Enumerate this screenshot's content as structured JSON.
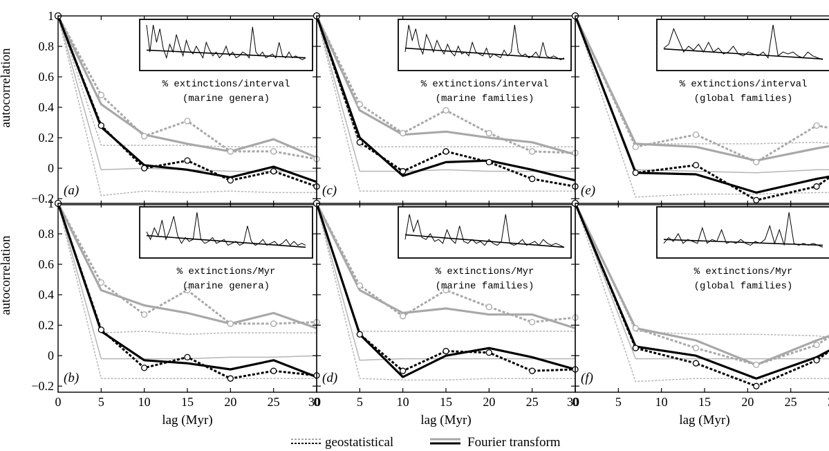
{
  "chart_data": [
    {
      "type": "line",
      "id": "a",
      "panel_label": "(a)",
      "x": [
        0,
        5,
        10,
        15,
        20,
        25,
        30
      ],
      "series": [
        {
          "name": "geostatistical",
          "style": "gray-dashed-circles",
          "values": [
            1,
            0.48,
            0.21,
            0.31,
            0.11,
            0.11,
            0.06
          ]
        },
        {
          "name": "geostatistical",
          "style": "black-dashed-circles",
          "values": [
            1,
            0.28,
            0.0,
            0.05,
            -0.08,
            -0.02,
            -0.12
          ]
        },
        {
          "name": "Fourier transform",
          "style": "gray-solid",
          "values": [
            1,
            0.42,
            0.22,
            0.16,
            0.11,
            0.19,
            0.07
          ]
        },
        {
          "name": "Fourier transform",
          "style": "black-solid",
          "values": [
            1,
            0.27,
            0.02,
            -0.01,
            -0.06,
            0.01,
            -0.09
          ]
        },
        {
          "style": "thin-gray-solid",
          "values": [
            1,
            -0.01,
            0.0,
            -0.01,
            -0.02,
            -0.02,
            -0.02
          ]
        },
        {
          "style": "thin-gray-dashed",
          "values": [
            1,
            0.15,
            0.15,
            0.15,
            0.14,
            0.14,
            0.14
          ]
        },
        {
          "style": "thin-gray-dashed",
          "values": [
            1,
            -0.18,
            -0.15,
            -0.16,
            -0.15,
            -0.16,
            -0.16
          ]
        }
      ],
      "inset": {
        "caption1": "% extinctions/interval",
        "caption2": "(marine genera)",
        "spikes": [
          2,
          0.3,
          5,
          0.55,
          0.9,
          0.4,
          0.15,
          0.5,
          0.3,
          0.75,
          0.45,
          0.2,
          0.6,
          0.35,
          0.25,
          0.45,
          0.3,
          0.15,
          0.55,
          0.35,
          0.2,
          0.3,
          0.15,
          0.25,
          0.45,
          0.2,
          0.3,
          0.15,
          0.2,
          0.3,
          0.25,
          0.15,
          0.95,
          0.3,
          0.2,
          0.3,
          0.15,
          0.2,
          0.25,
          0.15,
          0.55,
          0.2,
          0.15,
          0.3,
          0.15,
          0.2,
          0.15,
          0.1,
          0.15
        ],
        "trend": [
          0.35,
          0.15
        ]
      },
      "xlim": [
        0,
        30
      ],
      "ylim": [
        -0.24,
        1.0
      ],
      "xlabel": "",
      "ylabel": "autocorrelation"
    },
    {
      "type": "line",
      "id": "c",
      "panel_label": "(c)",
      "x": [
        0,
        5,
        10,
        15,
        20,
        25,
        30
      ],
      "series": [
        {
          "name": "geostatistical",
          "style": "gray-dashed-circles",
          "values": [
            1,
            0.42,
            0.23,
            0.38,
            0.23,
            0.11,
            0.1
          ]
        },
        {
          "name": "geostatistical",
          "style": "black-dashed-circles",
          "values": [
            1,
            0.17,
            -0.02,
            0.11,
            0.04,
            -0.07,
            -0.12
          ]
        },
        {
          "name": "Fourier transform",
          "style": "gray-solid",
          "values": [
            1,
            0.38,
            0.22,
            0.24,
            0.2,
            0.17,
            0.09
          ]
        },
        {
          "name": "Fourier transform",
          "style": "black-solid",
          "values": [
            1,
            0.2,
            -0.05,
            0.04,
            0.05,
            -0.01,
            -0.08
          ]
        },
        {
          "style": "thin-gray-solid",
          "values": [
            1,
            -0.02,
            -0.02,
            -0.01,
            -0.02,
            -0.02,
            -0.02
          ]
        },
        {
          "style": "thin-gray-dashed",
          "values": [
            1,
            0.14,
            0.14,
            0.14,
            0.14,
            0.14,
            0.14
          ]
        },
        {
          "style": "thin-gray-dashed",
          "values": [
            1,
            -0.15,
            -0.15,
            -0.15,
            -0.15,
            -0.15,
            -0.15
          ]
        }
      ],
      "inset": {
        "caption1": "% extinctions/interval",
        "caption2": "(marine families)",
        "spikes": [
          0.3,
          4,
          0.6,
          0.9,
          0.45,
          0.25,
          0.75,
          0.55,
          0.3,
          0.6,
          0.4,
          0.25,
          0.5,
          0.3,
          0.2,
          0.45,
          0.25,
          0.3,
          0.2,
          0.55,
          0.3,
          0.25,
          0.2,
          0.4,
          0.15,
          0.25,
          0.2,
          0.15,
          0.35,
          0.2,
          0.3,
          1.0,
          0.3,
          0.2,
          0.25,
          0.15,
          0.2,
          0.3,
          0.15,
          0.55,
          0.2,
          0.15,
          0.2,
          0.15,
          0.1,
          0.15
        ],
        "trend": [
          0.4,
          0.12
        ]
      },
      "xlim": [
        0,
        30
      ],
      "ylim": [
        -0.24,
        1.0
      ],
      "xlabel": "",
      "ylabel": ""
    },
    {
      "type": "line",
      "id": "e",
      "panel_label": "(e)",
      "x": [
        0,
        7,
        14,
        21,
        28,
        30
      ],
      "series": [
        {
          "name": "geostatistical",
          "style": "gray-dashed-circles",
          "values": [
            1,
            0.14,
            0.22,
            0.04,
            0.28,
            0.26
          ]
        },
        {
          "name": "geostatistical",
          "style": "black-dashed-circles",
          "values": [
            1,
            -0.03,
            0.02,
            -0.21,
            -0.12,
            -0.04
          ]
        },
        {
          "name": "Fourier transform",
          "style": "gray-solid",
          "values": [
            1,
            0.16,
            0.14,
            0.05,
            0.13,
            0.15
          ]
        },
        {
          "name": "Fourier transform",
          "style": "black-solid",
          "values": [
            1,
            -0.03,
            -0.04,
            -0.16,
            -0.07,
            -0.05
          ]
        },
        {
          "style": "thin-gray-solid",
          "values": [
            1,
            -0.01,
            -0.02,
            -0.03,
            -0.01,
            -0.01
          ]
        },
        {
          "style": "thin-gray-dashed",
          "values": [
            1,
            0.16,
            0.16,
            0.16,
            0.17,
            0.16
          ]
        },
        {
          "style": "thin-gray-dashed",
          "values": [
            1,
            -0.19,
            -0.17,
            -0.17,
            -0.16,
            -0.16
          ]
        }
      ],
      "inset": {
        "caption1": "% extinctions/interval",
        "caption2": "(global families)",
        "spikes": [
          0.4,
          0.5,
          0.9,
          0.6,
          0.3,
          0.45,
          0.35,
          0.5,
          0.3,
          0.55,
          0.3,
          0.4,
          0.25,
          0.3,
          0.45,
          0.25,
          0.2,
          0.3,
          0.25,
          0.2,
          0.3,
          0.15,
          1.0,
          0.2,
          0.3,
          0.25,
          0.3,
          0.2,
          0.15,
          0.3,
          0.2,
          0.15,
          0.1
        ],
        "trend": [
          0.38,
          0.12
        ]
      },
      "xlim": [
        0,
        30
      ],
      "ylim": [
        -0.24,
        1.0
      ],
      "xlabel": "",
      "ylabel": ""
    },
    {
      "type": "line",
      "id": "b",
      "panel_label": "(b)",
      "x": [
        0,
        5,
        10,
        15,
        20,
        25,
        30
      ],
      "series": [
        {
          "name": "geostatistical",
          "style": "gray-dashed-circles",
          "values": [
            1,
            0.48,
            0.27,
            0.43,
            0.21,
            0.21,
            0.22
          ]
        },
        {
          "name": "geostatistical",
          "style": "black-dashed-circles",
          "values": [
            1,
            0.17,
            -0.08,
            -0.01,
            -0.15,
            -0.1,
            -0.13
          ]
        },
        {
          "name": "Fourier transform",
          "style": "gray-solid",
          "values": [
            1,
            0.43,
            0.33,
            0.28,
            0.21,
            0.28,
            0.18
          ]
        },
        {
          "name": "Fourier transform",
          "style": "black-solid",
          "values": [
            1,
            0.16,
            -0.03,
            -0.05,
            -0.09,
            -0.03,
            -0.14
          ]
        },
        {
          "style": "thin-gray-solid",
          "values": [
            1,
            -0.02,
            -0.02,
            -0.02,
            -0.01,
            -0.01,
            -0.0
          ]
        },
        {
          "style": "thin-gray-dashed",
          "values": [
            1,
            0.15,
            0.16,
            0.14,
            0.15,
            0.15,
            0.15
          ]
        },
        {
          "style": "thin-gray-dashed",
          "values": [
            1,
            -0.15,
            -0.15,
            -0.15,
            -0.15,
            -0.15,
            -0.15
          ]
        }
      ],
      "inset": {
        "caption1": "% extinctions/Myr",
        "caption2": "(marine genera)",
        "spikes": [
          0.5,
          0.3,
          0.6,
          0.4,
          0.8,
          0.3,
          0.55,
          0.9,
          0.4,
          0.2,
          0.35,
          0.25,
          0.3,
          1.0,
          0.3,
          0.2,
          0.25,
          0.35,
          0.2,
          0.25,
          0.3,
          0.15,
          0.2,
          0.25,
          0.15,
          0.2,
          0.65,
          0.25,
          0.15,
          0.2,
          0.3,
          0.15,
          0.2,
          0.25,
          0.15,
          0.2,
          0.3,
          0.15,
          0.25,
          0.15,
          0.2,
          0.15
        ],
        "trend": [
          0.4,
          0.1
        ]
      },
      "xlim": [
        0,
        30
      ],
      "ylim": [
        -0.24,
        1.0
      ],
      "xlabel": "lag (Myr)",
      "ylabel": "autocorrelation"
    },
    {
      "type": "line",
      "id": "d",
      "panel_label": "(d)",
      "x": [
        0,
        5,
        10,
        15,
        20,
        25,
        30
      ],
      "series": [
        {
          "name": "geostatistical",
          "style": "gray-dashed-circles",
          "values": [
            1,
            0.46,
            0.26,
            0.43,
            0.32,
            0.22,
            0.25
          ]
        },
        {
          "name": "geostatistical",
          "style": "black-dashed-circles",
          "values": [
            1,
            0.14,
            -0.1,
            0.03,
            0.02,
            -0.1,
            -0.09
          ]
        },
        {
          "name": "Fourier transform",
          "style": "gray-solid",
          "values": [
            1,
            0.43,
            0.28,
            0.31,
            0.27,
            0.27,
            0.18
          ]
        },
        {
          "name": "Fourier transform",
          "style": "black-solid",
          "values": [
            1,
            0.14,
            -0.14,
            0.0,
            0.05,
            -0.01,
            -0.09
          ]
        },
        {
          "style": "thin-gray-solid",
          "values": [
            1,
            -0.03,
            -0.02,
            -0.02,
            -0.02,
            -0.02,
            -0.02
          ]
        },
        {
          "style": "thin-gray-dashed",
          "values": [
            1,
            0.16,
            0.16,
            0.16,
            0.16,
            0.16,
            0.16
          ]
        },
        {
          "style": "thin-gray-dashed",
          "values": [
            1,
            -0.15,
            -0.16,
            -0.16,
            -0.15,
            -0.15,
            -0.15
          ]
        }
      ],
      "inset": {
        "caption1": "% extinctions/Myr",
        "caption2": "(marine families)",
        "spikes": [
          0.3,
          0.95,
          0.5,
          0.8,
          0.35,
          0.3,
          0.45,
          0.25,
          0.3,
          0.2,
          0.55,
          0.3,
          0.2,
          0.65,
          0.25,
          0.2,
          0.3,
          0.2,
          0.25,
          0.15,
          0.3,
          0.2,
          0.15,
          0.25,
          0.95,
          0.2,
          0.15,
          0.2,
          0.3,
          0.15,
          0.2,
          0.25,
          0.15,
          0.3,
          0.2,
          0.15,
          0.2,
          0.15,
          0.1
        ],
        "trend": [
          0.42,
          0.1
        ]
      },
      "xlim": [
        0,
        30
      ],
      "ylim": [
        -0.24,
        1.0
      ],
      "xlabel": "lag (Myr)",
      "ylabel": ""
    },
    {
      "type": "line",
      "id": "f",
      "panel_label": "(f)",
      "x": [
        0,
        7,
        14,
        21,
        28,
        30
      ],
      "series": [
        {
          "name": "geostatistical",
          "style": "gray-dashed-circles",
          "values": [
            1,
            0.18,
            0.05,
            -0.06,
            0.07,
            0.14
          ]
        },
        {
          "name": "geostatistical",
          "style": "black-dashed-circles",
          "values": [
            1,
            0.05,
            -0.05,
            -0.2,
            -0.03,
            0.05
          ]
        },
        {
          "name": "Fourier transform",
          "style": "gray-solid",
          "values": [
            1,
            0.18,
            0.1,
            -0.06,
            0.1,
            0.14
          ]
        },
        {
          "name": "Fourier transform",
          "style": "black-solid",
          "values": [
            1,
            0.06,
            0.0,
            -0.15,
            -0.01,
            0.05
          ]
        },
        {
          "style": "thin-gray-solid",
          "values": [
            1,
            -0.02,
            -0.02,
            -0.02,
            -0.02,
            -0.02
          ]
        },
        {
          "style": "thin-gray-dashed",
          "values": [
            1,
            0.16,
            0.14,
            0.14,
            0.13,
            0.12
          ]
        },
        {
          "style": "thin-gray-dashed",
          "values": [
            1,
            -0.17,
            -0.15,
            -0.15,
            -0.15,
            -0.15
          ]
        }
      ],
      "inset": {
        "caption1": "% extinctions/Myr",
        "caption2": "(global families)",
        "spikes": [
          0.2,
          0.35,
          0.25,
          0.45,
          0.2,
          0.3,
          0.25,
          0.2,
          0.6,
          0.2,
          0.3,
          0.25,
          0.55,
          0.2,
          0.25,
          0.2,
          0.3,
          0.2,
          0.15,
          0.25,
          0.2,
          0.3,
          0.65,
          0.2,
          0.55,
          0.15,
          1.0,
          0.2,
          0.15,
          0.2,
          0.15,
          0.2,
          0.15,
          0.1
        ],
        "trend": [
          0.3,
          0.15
        ]
      },
      "xlim": [
        0,
        30
      ],
      "ylim": [
        -0.24,
        1.0
      ],
      "xlabel": "lag (Myr)",
      "ylabel": ""
    }
  ],
  "axis": {
    "y_ticks": [
      1,
      0.8,
      0.6,
      0.4,
      0.2,
      0,
      -0.2
    ],
    "y_tick_labels": [
      "1",
      "0.8",
      "0.6",
      "0.4",
      "0.2",
      "0",
      "−0.2"
    ],
    "x_ticks": [
      0,
      5,
      10,
      15,
      20,
      25,
      30
    ],
    "x_tick_labels": [
      "0",
      "5",
      "10",
      "15",
      "20",
      "25",
      "30"
    ]
  },
  "legend": {
    "items": [
      {
        "label": "geostatistical",
        "style": "dashed-pair"
      },
      {
        "label": "Fourier transform",
        "style": "solid-pair"
      }
    ]
  },
  "colors": {
    "gray": "#a8a8a8",
    "black": "#000000",
    "thin_gray": "#b5b5b5"
  }
}
